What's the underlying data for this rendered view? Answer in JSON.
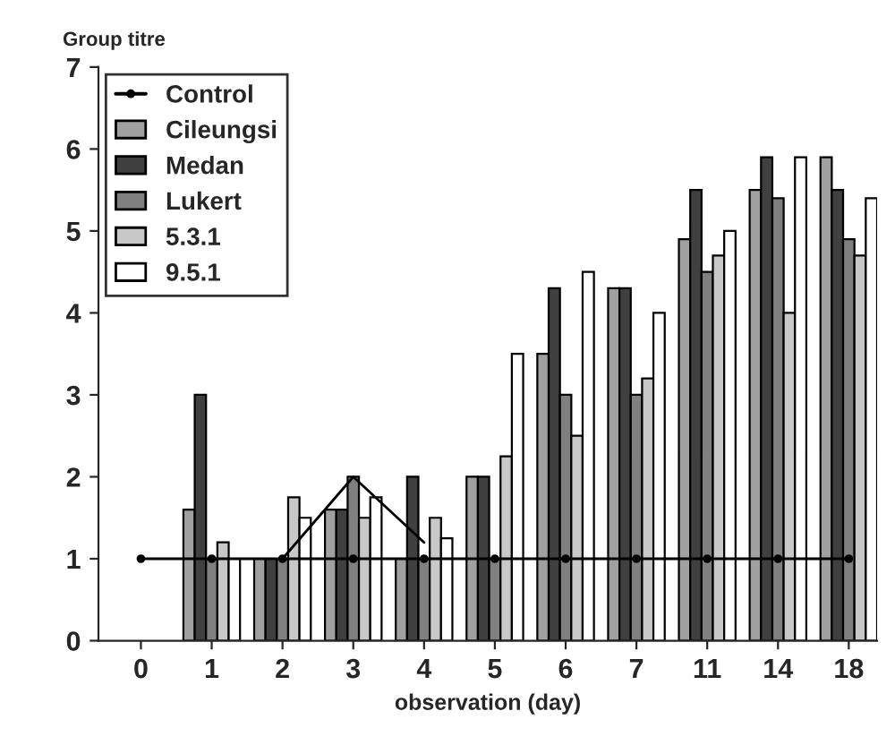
{
  "chart_data": {
    "type": "bar",
    "ylabel": "Group titre",
    "xlabel": "observation (day)",
    "categories": [
      "0",
      "1",
      "2",
      "3",
      "4",
      "5",
      "6",
      "7",
      "11",
      "14",
      "18"
    ],
    "series": [
      {
        "name": "Control",
        "type": "line",
        "color": "#000000",
        "marker": "circle",
        "values": [
          1,
          1,
          1,
          1,
          1,
          1,
          1,
          1,
          1,
          1,
          1
        ]
      },
      {
        "name": "Cileungsi",
        "color": "#a0a0a0",
        "values": [
          null,
          1.6,
          1.0,
          1.6,
          1.0,
          2.0,
          3.5,
          4.3,
          4.9,
          5.5,
          5.9
        ]
      },
      {
        "name": "Medan",
        "color": "#404040",
        "values": [
          null,
          3.0,
          1.0,
          1.6,
          2.0,
          2.0,
          4.3,
          4.3,
          5.5,
          5.9,
          5.5
        ]
      },
      {
        "name": "Lukert",
        "color": "#808080",
        "values": [
          null,
          1.0,
          1.0,
          2.0,
          1.0,
          1.0,
          3.0,
          3.0,
          4.5,
          5.4,
          4.9
        ]
      },
      {
        "name": "5.3.1",
        "color": "#c8c8c8",
        "values": [
          null,
          1.2,
          1.75,
          1.5,
          1.5,
          2.25,
          2.5,
          3.2,
          4.7,
          4.0,
          4.7
        ]
      },
      {
        "name": "9.5.1",
        "color": "#ffffff",
        "values": [
          null,
          1.0,
          1.5,
          1.75,
          1.25,
          3.5,
          4.5,
          4.0,
          5.0,
          5.9,
          5.4
        ]
      },
      {
        "type": "line",
        "color": "#000000",
        "values": [
          null,
          null,
          1.0,
          2.0,
          1.2,
          null,
          null,
          null,
          null,
          null,
          null
        ]
      }
    ],
    "ylim": [
      0,
      7
    ],
    "yticks": [
      0,
      1,
      2,
      3,
      4,
      5,
      6,
      7
    ],
    "legend": "top left"
  }
}
